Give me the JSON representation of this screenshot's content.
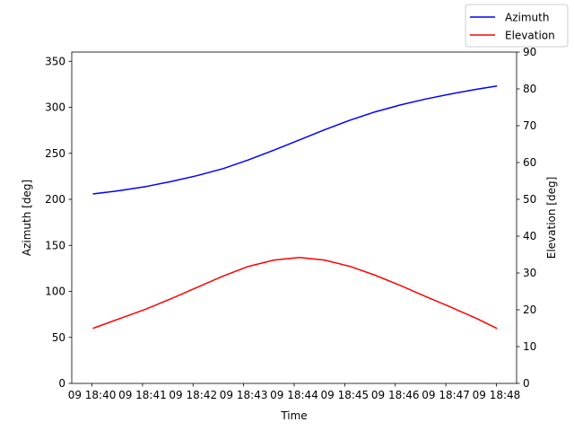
{
  "chart_data": {
    "type": "line",
    "xlabel": "Time",
    "ylabel_left": "Azimuth [deg]",
    "ylabel_right": "Elevation [deg]",
    "x_ticks": [
      "09 18:40",
      "09 18:41",
      "09 18:42",
      "09 18:43",
      "09 18:44",
      "09 18:45",
      "09 18:46",
      "09 18:47",
      "09 18:48"
    ],
    "x_minutes": [
      0,
      1,
      2,
      3,
      4,
      5,
      6,
      7,
      8
    ],
    "xlim": [
      -0.4,
      8.4
    ],
    "left_axis": {
      "ylim": [
        0,
        360
      ],
      "ticks": [
        0,
        50,
        100,
        150,
        200,
        250,
        300,
        350
      ]
    },
    "right_axis": {
      "ylim": [
        0,
        90
      ],
      "ticks": [
        0,
        10,
        20,
        30,
        40,
        50,
        60,
        70,
        80,
        90
      ]
    },
    "grid": false,
    "legend_position": "top-right",
    "series": [
      {
        "name": "Azimuth",
        "axis": "left",
        "color": "#0000ff",
        "x": [
          0.03,
          0.55,
          1.07,
          1.58,
          2.1,
          2.6,
          3.1,
          3.6,
          4.1,
          4.6,
          5.1,
          5.6,
          6.1,
          6.6,
          7.1,
          7.6,
          8.0
        ],
        "y": [
          206,
          209.5,
          214,
          219.5,
          226,
          233.5,
          243,
          253.5,
          264.5,
          275.5,
          286,
          295,
          302.5,
          309,
          314.5,
          319.5,
          323
        ]
      },
      {
        "name": "Elevation",
        "axis": "right",
        "color": "#ff0000",
        "x": [
          0.03,
          0.55,
          1.07,
          1.58,
          2.1,
          2.6,
          3.1,
          3.6,
          4.1,
          4.6,
          5.1,
          5.6,
          6.1,
          6.6,
          7.1,
          7.6,
          8.0
        ],
        "y": [
          15,
          17.6,
          20.2,
          23.1,
          26.2,
          29.2,
          31.8,
          33.5,
          34.2,
          33.5,
          31.8,
          29.4,
          26.6,
          23.6,
          20.7,
          17.7,
          15
        ]
      }
    ]
  }
}
